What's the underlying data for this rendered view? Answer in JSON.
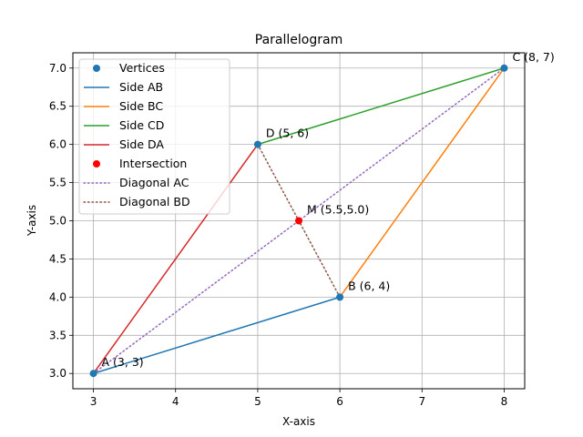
{
  "chart_data": {
    "type": "line",
    "title": "Parallelogram",
    "xlabel": "X-axis",
    "ylabel": "Y-axis",
    "xlim": [
      2.75,
      8.25
    ],
    "ylim": [
      2.8,
      7.2
    ],
    "xticks": [
      3,
      4,
      5,
      6,
      7,
      8
    ],
    "yticks": [
      3.0,
      3.5,
      4.0,
      4.5,
      5.0,
      5.5,
      6.0,
      6.5,
      7.0
    ],
    "grid": true,
    "legend_position": "upper-left",
    "vertices": [
      {
        "name": "A",
        "x": 3,
        "y": 3,
        "label": "A (3, 3)"
      },
      {
        "name": "B",
        "x": 6,
        "y": 4,
        "label": "B (6, 4)"
      },
      {
        "name": "C",
        "x": 8,
        "y": 7,
        "label": "C (8, 7)"
      },
      {
        "name": "D",
        "x": 5,
        "y": 6,
        "label": "D (5, 6)"
      }
    ],
    "intersection": {
      "x": 5.5,
      "y": 5.0,
      "label": "M (5.5,5.0)"
    },
    "sides": [
      {
        "name": "Side AB",
        "from": "A",
        "to": "B",
        "color": "#1f77b4"
      },
      {
        "name": "Side BC",
        "from": "B",
        "to": "C",
        "color": "#ff7f0e"
      },
      {
        "name": "Side CD",
        "from": "C",
        "to": "D",
        "color": "#2ca02c"
      },
      {
        "name": "Side DA",
        "from": "D",
        "to": "A",
        "color": "#d62728"
      }
    ],
    "diagonals": [
      {
        "name": "Diagonal AC",
        "from": "A",
        "to": "C",
        "color": "#9467bd",
        "style": "dotted"
      },
      {
        "name": "Diagonal BD",
        "from": "B",
        "to": "D",
        "color": "#8c564b",
        "style": "dotted"
      }
    ],
    "legend": [
      {
        "label": "Vertices",
        "kind": "marker",
        "color": "#1f77b4"
      },
      {
        "label": "Side AB",
        "kind": "line",
        "color": "#1f77b4"
      },
      {
        "label": "Side BC",
        "kind": "line",
        "color": "#ff7f0e"
      },
      {
        "label": "Side CD",
        "kind": "line",
        "color": "#2ca02c"
      },
      {
        "label": "Side DA",
        "kind": "line",
        "color": "#d62728"
      },
      {
        "label": "Intersection",
        "kind": "marker",
        "color": "#ff0000"
      },
      {
        "label": "Diagonal AC",
        "kind": "dotted",
        "color": "#9467bd"
      },
      {
        "label": "Diagonal BD",
        "kind": "dotted",
        "color": "#8c564b"
      }
    ]
  }
}
